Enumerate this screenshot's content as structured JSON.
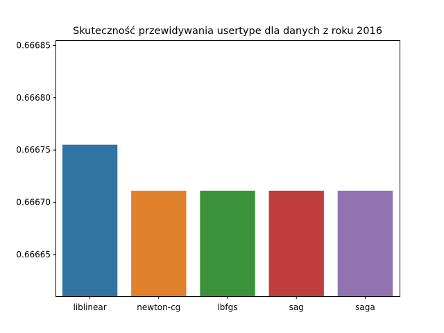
{
  "chart_data": {
    "type": "bar",
    "title": "Skuteczność przewidywania usertype dla danych z roku 2016",
    "xlabel": "",
    "ylabel": "",
    "categories": [
      "liblinear",
      "newton-cg",
      "lbfgs",
      "sag",
      "saga"
    ],
    "values": [
      0.666755,
      0.666711,
      0.666711,
      0.666711,
      0.666711
    ],
    "colors": [
      "#3274a1",
      "#e1812c",
      "#3a923a",
      "#c03d3e",
      "#9372b2"
    ],
    "ylim": [
      0.66661,
      0.666855
    ],
    "yticks": [
      0.66665,
      0.6667,
      0.66675,
      0.6668,
      0.66685
    ],
    "ytick_labels": [
      "0.66665",
      "0.66670",
      "0.66675",
      "0.66680",
      "0.66685"
    ],
    "grid": false,
    "legend": "none"
  }
}
